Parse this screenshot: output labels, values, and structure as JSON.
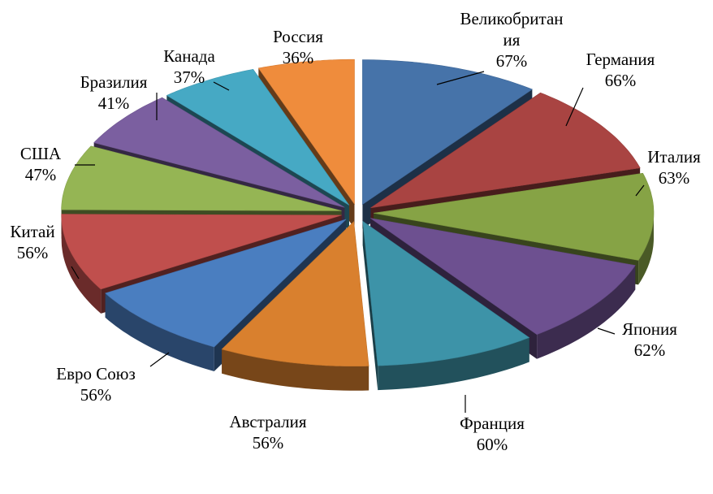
{
  "chart_data": {
    "type": "pie",
    "style": "3d-exploded",
    "start": "12 o'clock, clockwise",
    "slices": [
      {
        "name": "Великобритания",
        "value": 67,
        "label_lines": [
          "Великобритан",
          "ия"
        ],
        "value_label": "67%",
        "color": "#4673a9"
      },
      {
        "name": "Германия",
        "value": 66,
        "label_lines": [
          "Германия"
        ],
        "value_label": "66%",
        "color": "#a94442"
      },
      {
        "name": "Италия",
        "value": 63,
        "label_lines": [
          "Италия"
        ],
        "value_label": "63%",
        "color": "#86a345"
      },
      {
        "name": "Япония",
        "value": 62,
        "label_lines": [
          "Япония"
        ],
        "value_label": "62%",
        "color": "#6d5090"
      },
      {
        "name": "Франция",
        "value": 60,
        "label_lines": [
          "Франция"
        ],
        "value_label": "60%",
        "color": "#3d93a8"
      },
      {
        "name": "Австралия",
        "value": 56,
        "label_lines": [
          "Австралия"
        ],
        "value_label": "56%",
        "color": "#d9802e"
      },
      {
        "name": "Евро Союз",
        "value": 56,
        "label_lines": [
          "Евро Союз"
        ],
        "value_label": "56%",
        "color": "#4a7ec0"
      },
      {
        "name": "Китай",
        "value": 56,
        "label_lines": [
          "Китай"
        ],
        "value_label": "56%",
        "color": "#c04f4d"
      },
      {
        "name": "США",
        "value": 47,
        "label_lines": [
          "США"
        ],
        "value_label": "47%",
        "color": "#95b554"
      },
      {
        "name": "Бразилия",
        "value": 41,
        "label_lines": [
          "Бразилия"
        ],
        "value_label": "41%",
        "color": "#7b5fa0"
      },
      {
        "name": "Канада",
        "value": 37,
        "label_lines": [
          "Канада"
        ],
        "value_label": "37%",
        "color": "#46a9c4"
      },
      {
        "name": "Россия",
        "value": 36,
        "label_lines": [
          "Россия"
        ],
        "value_label": "36%",
        "color": "#ef8c3c"
      }
    ]
  }
}
